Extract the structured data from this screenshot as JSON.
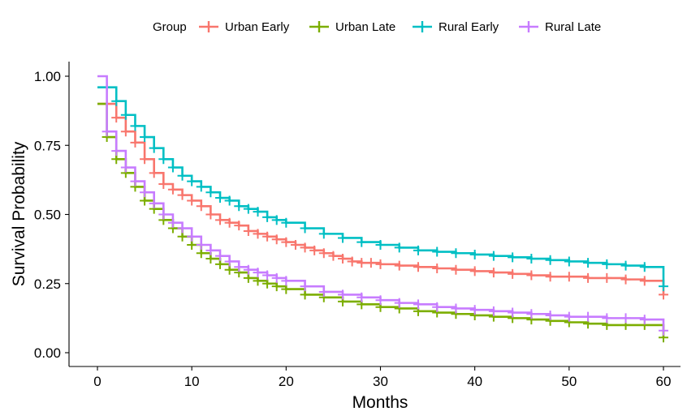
{
  "chart_data": {
    "type": "line",
    "subtype": "step",
    "xlabel": "Months",
    "ylabel": "Survival Probability",
    "xlim": [
      0,
      60
    ],
    "ylim": [
      0,
      1
    ],
    "xticks": [
      0,
      10,
      20,
      30,
      40,
      50,
      60
    ],
    "xtick_labels": [
      "0",
      "10",
      "20",
      "30",
      "40",
      "50",
      "60"
    ],
    "yticks": [
      0,
      0.25,
      0.5,
      0.75,
      1.0
    ],
    "ytick_labels": [
      "0.00",
      "0.25",
      "0.50",
      "0.75",
      "1.00"
    ],
    "grid": false,
    "legend": {
      "title": "Group",
      "position": "top"
    },
    "series": [
      {
        "name": "Urban Early",
        "color": "#F8766D",
        "x": [
          0,
          1,
          2,
          3,
          4,
          5,
          6,
          7,
          8,
          9,
          10,
          11,
          12,
          13,
          14,
          15,
          16,
          17,
          18,
          19,
          20,
          21,
          22,
          23,
          24,
          25,
          26,
          27,
          28,
          29,
          30,
          32,
          34,
          36,
          38,
          40,
          42,
          44,
          46,
          48,
          50,
          52,
          54,
          56,
          58,
          60
        ],
        "y": [
          0.9,
          0.9,
          0.85,
          0.8,
          0.76,
          0.7,
          0.65,
          0.61,
          0.59,
          0.57,
          0.55,
          0.53,
          0.5,
          0.48,
          0.47,
          0.46,
          0.44,
          0.43,
          0.42,
          0.41,
          0.4,
          0.39,
          0.38,
          0.37,
          0.36,
          0.35,
          0.34,
          0.33,
          0.325,
          0.325,
          0.32,
          0.315,
          0.31,
          0.305,
          0.3,
          0.295,
          0.29,
          0.285,
          0.28,
          0.275,
          0.275,
          0.27,
          0.27,
          0.265,
          0.26,
          0.21
        ]
      },
      {
        "name": "Urban Late",
        "color": "#7CAE00",
        "x": [
          0,
          1,
          2,
          3,
          4,
          5,
          6,
          7,
          8,
          9,
          10,
          11,
          12,
          13,
          14,
          15,
          16,
          17,
          18,
          19,
          20,
          22,
          24,
          26,
          28,
          30,
          32,
          34,
          36,
          38,
          40,
          42,
          44,
          46,
          48,
          50,
          52,
          54,
          56,
          58,
          60
        ],
        "y": [
          0.9,
          0.78,
          0.7,
          0.65,
          0.6,
          0.55,
          0.52,
          0.48,
          0.45,
          0.42,
          0.39,
          0.36,
          0.34,
          0.32,
          0.3,
          0.29,
          0.27,
          0.26,
          0.25,
          0.24,
          0.23,
          0.21,
          0.2,
          0.185,
          0.175,
          0.165,
          0.16,
          0.15,
          0.145,
          0.14,
          0.135,
          0.13,
          0.125,
          0.12,
          0.115,
          0.11,
          0.105,
          0.1,
          0.1,
          0.1,
          0.055
        ]
      },
      {
        "name": "Rural Early",
        "color": "#00BFC4",
        "x": [
          0,
          1,
          2,
          3,
          4,
          5,
          6,
          7,
          8,
          9,
          10,
          11,
          12,
          13,
          14,
          15,
          16,
          17,
          18,
          19,
          20,
          22,
          24,
          26,
          28,
          30,
          32,
          34,
          36,
          38,
          40,
          42,
          44,
          46,
          48,
          50,
          52,
          54,
          56,
          58,
          60
        ],
        "y": [
          0.96,
          0.96,
          0.91,
          0.86,
          0.82,
          0.78,
          0.74,
          0.7,
          0.67,
          0.64,
          0.62,
          0.6,
          0.58,
          0.56,
          0.55,
          0.53,
          0.52,
          0.51,
          0.49,
          0.48,
          0.47,
          0.45,
          0.43,
          0.415,
          0.4,
          0.39,
          0.38,
          0.37,
          0.365,
          0.36,
          0.355,
          0.35,
          0.345,
          0.34,
          0.335,
          0.33,
          0.325,
          0.32,
          0.315,
          0.31,
          0.24
        ]
      },
      {
        "name": "Rural Late",
        "color": "#C77CFF",
        "x": [
          0,
          1,
          2,
          3,
          4,
          5,
          6,
          7,
          8,
          9,
          10,
          11,
          12,
          13,
          14,
          15,
          16,
          17,
          18,
          19,
          20,
          22,
          24,
          26,
          28,
          30,
          32,
          34,
          36,
          38,
          40,
          42,
          44,
          46,
          48,
          50,
          52,
          54,
          56,
          58,
          60
        ],
        "y": [
          1.0,
          0.8,
          0.73,
          0.67,
          0.62,
          0.58,
          0.54,
          0.5,
          0.47,
          0.45,
          0.42,
          0.39,
          0.37,
          0.35,
          0.33,
          0.31,
          0.3,
          0.29,
          0.28,
          0.27,
          0.26,
          0.24,
          0.22,
          0.21,
          0.2,
          0.19,
          0.18,
          0.175,
          0.165,
          0.16,
          0.155,
          0.15,
          0.145,
          0.14,
          0.135,
          0.13,
          0.13,
          0.125,
          0.125,
          0.12,
          0.08
        ]
      }
    ]
  }
}
